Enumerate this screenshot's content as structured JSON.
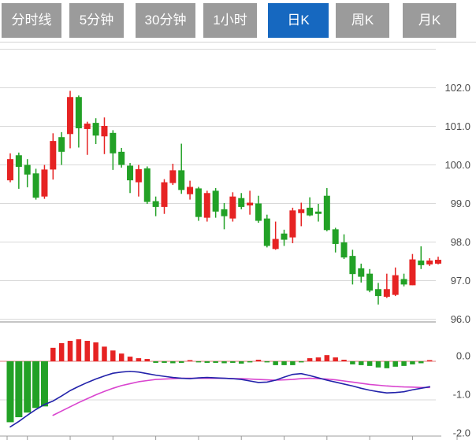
{
  "tabs": [
    {
      "label": "分时线",
      "active": false
    },
    {
      "label": "5分钟",
      "active": false
    },
    {
      "label": "30分钟",
      "active": false
    },
    {
      "label": "1小时",
      "active": false
    },
    {
      "label": "日K",
      "active": true
    },
    {
      "label": "周K",
      "active": false
    },
    {
      "label": "月K",
      "active": false
    }
  ],
  "colors": {
    "up": "#e62323",
    "down": "#22a126",
    "tab_active": "#1668c0",
    "tab_inactive": "#9b9b9b",
    "dif_line": "#2222aa",
    "dea_line": "#d944cf",
    "zero_line": "#e07a7a",
    "grid": "#d9d9d9",
    "axis": "#b2b2b2",
    "tick": "#999999",
    "label": "#4a4a4a"
  },
  "chart_data": {
    "type": "candlestick",
    "title": "日K line chart with MACD sub-chart",
    "price_axis_labels": [
      "102.0",
      "101.0",
      "100.0",
      "99.0",
      "98.0",
      "97.0",
      "96.0"
    ],
    "price_axis_values": [
      102,
      101,
      100,
      99,
      98,
      97,
      96
    ],
    "price_grid_values": [
      103,
      102,
      101,
      100,
      99,
      98,
      97,
      96
    ],
    "macd_axis_labels": [
      "0.0",
      "-1.0",
      "-2.0"
    ],
    "macd_axis_values": [
      0,
      -1,
      -2
    ],
    "candles": [
      [
        99.6,
        100.3,
        99.55,
        100.15
      ],
      [
        100.25,
        100.32,
        99.38,
        99.95
      ],
      [
        100.0,
        100.15,
        99.42,
        99.75
      ],
      [
        99.78,
        99.9,
        99.1,
        99.15
      ],
      [
        99.18,
        100.0,
        99.12,
        99.88
      ],
      [
        99.88,
        100.82,
        99.62,
        100.62
      ],
      [
        100.72,
        100.85,
        100.0,
        100.34
      ],
      [
        100.8,
        101.92,
        100.43,
        101.76
      ],
      [
        101.76,
        101.8,
        100.45,
        100.95
      ],
      [
        100.93,
        101.12,
        100.26,
        101.07
      ],
      [
        101.09,
        101.21,
        100.54,
        100.76
      ],
      [
        100.74,
        101.23,
        100.28,
        101.01
      ],
      [
        100.83,
        100.9,
        99.87,
        100.3
      ],
      [
        100.34,
        100.44,
        99.93,
        100.0
      ],
      [
        99.98,
        100.05,
        99.27,
        99.6
      ],
      [
        99.55,
        100.0,
        99.18,
        99.89
      ],
      [
        99.91,
        99.96,
        98.99,
        99.04
      ],
      [
        99.06,
        99.18,
        98.67,
        98.91
      ],
      [
        98.91,
        99.63,
        98.73,
        99.55
      ],
      [
        99.53,
        100.03,
        99.48,
        99.86
      ],
      [
        99.86,
        100.55,
        99.25,
        99.35
      ],
      [
        99.24,
        99.59,
        99.1,
        99.43
      ],
      [
        99.39,
        99.43,
        98.55,
        98.65
      ],
      [
        98.63,
        99.33,
        98.53,
        99.27
      ],
      [
        99.33,
        99.4,
        98.63,
        98.79
      ],
      [
        98.85,
        99.01,
        98.33,
        98.67
      ],
      [
        98.61,
        99.29,
        98.53,
        99.18
      ],
      [
        99.14,
        99.27,
        98.85,
        98.91
      ],
      [
        98.95,
        99.33,
        98.71,
        99.02
      ],
      [
        99.0,
        99.2,
        98.5,
        98.55
      ],
      [
        98.61,
        98.71,
        97.86,
        97.9
      ],
      [
        97.82,
        98.53,
        97.8,
        98.08
      ],
      [
        98.22,
        98.32,
        97.9,
        98.06
      ],
      [
        98.12,
        98.89,
        97.97,
        98.82
      ],
      [
        98.75,
        99.02,
        98.41,
        98.85
      ],
      [
        98.89,
        99.16,
        98.67,
        98.69
      ],
      [
        98.79,
        98.99,
        98.53,
        98.73
      ],
      [
        99.2,
        99.4,
        98.28,
        98.31
      ],
      [
        98.33,
        98.37,
        97.73,
        97.95
      ],
      [
        97.99,
        98.2,
        97.56,
        97.6
      ],
      [
        97.64,
        97.8,
        96.9,
        97.17
      ],
      [
        97.32,
        97.44,
        96.95,
        97.1
      ],
      [
        97.18,
        97.3,
        96.7,
        96.74
      ],
      [
        96.78,
        96.94,
        96.38,
        96.6
      ],
      [
        96.58,
        97.18,
        96.55,
        96.78
      ],
      [
        96.63,
        97.34,
        96.6,
        97.14
      ],
      [
        97.04,
        97.18,
        96.85,
        96.9
      ],
      [
        96.88,
        97.69,
        96.88,
        97.55
      ],
      [
        97.52,
        97.89,
        97.3,
        97.4
      ],
      [
        97.42,
        97.58,
        97.38,
        97.52
      ],
      [
        97.44,
        97.62,
        97.42,
        97.54
      ]
    ],
    "macd": {
      "histogram": [
        -1.58,
        -1.45,
        -1.33,
        -1.21,
        -1.17,
        0.35,
        0.47,
        0.53,
        0.57,
        0.53,
        0.49,
        0.38,
        0.28,
        0.2,
        0.12,
        0.08,
        0.06,
        -0.04,
        -0.04,
        -0.05,
        -0.04,
        0.03,
        -0.02,
        -0.04,
        -0.04,
        -0.05,
        -0.04,
        -0.06,
        -0.02,
        0.04,
        -0.01,
        -0.1,
        -0.1,
        -0.1,
        -0.01,
        0.08,
        0.1,
        0.16,
        0.1,
        0.04,
        -0.08,
        -0.1,
        -0.12,
        -0.16,
        -0.18,
        -0.14,
        -0.12,
        -0.08,
        -0.05,
        0.03,
        null
      ],
      "dif": [
        -1.7,
        -1.56,
        -1.4,
        -1.25,
        -1.12,
        -1.03,
        -0.9,
        -0.76,
        -0.65,
        -0.55,
        -0.46,
        -0.38,
        -0.31,
        -0.28,
        -0.26,
        -0.28,
        -0.32,
        -0.36,
        -0.39,
        -0.42,
        -0.44,
        -0.45,
        -0.43,
        -0.42,
        -0.43,
        -0.44,
        -0.45,
        -0.47,
        -0.51,
        -0.55,
        -0.54,
        -0.49,
        -0.41,
        -0.34,
        -0.32,
        -0.37,
        -0.43,
        -0.49,
        -0.54,
        -0.59,
        -0.64,
        -0.7,
        -0.75,
        -0.79,
        -0.82,
        -0.81,
        -0.79,
        -0.74,
        -0.7,
        -0.66,
        null
      ],
      "dea": [
        null,
        null,
        null,
        null,
        null,
        -1.4,
        -1.29,
        -1.18,
        -1.07,
        -0.97,
        -0.87,
        -0.78,
        -0.7,
        -0.63,
        -0.58,
        -0.53,
        -0.5,
        -0.47,
        -0.46,
        -0.45,
        -0.44,
        -0.44,
        -0.44,
        -0.44,
        -0.44,
        -0.44,
        -0.45,
        -0.45,
        -0.46,
        -0.47,
        -0.48,
        -0.49,
        -0.48,
        -0.47,
        -0.45,
        -0.44,
        -0.45,
        -0.46,
        -0.48,
        -0.51,
        -0.54,
        -0.57,
        -0.6,
        -0.62,
        -0.64,
        -0.655,
        -0.665,
        -0.67,
        -0.68,
        -0.68,
        null
      ]
    }
  }
}
